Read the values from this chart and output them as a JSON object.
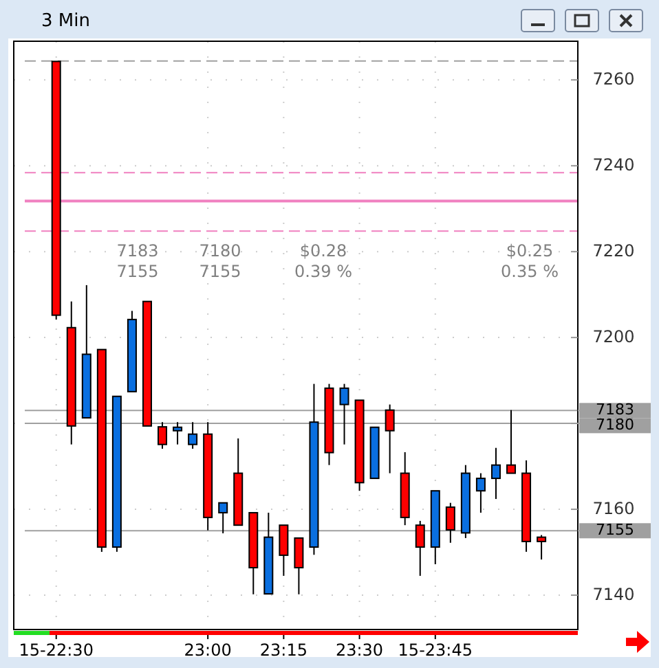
{
  "chart_data": {
    "type": "candlestick",
    "title": "3 Min",
    "x": [
      22.5,
      22.55,
      22.6,
      22.65,
      22.7,
      22.75,
      22.8,
      22.85,
      22.9,
      22.95,
      23.0,
      23.05,
      23.1,
      23.15,
      23.2,
      23.25,
      23.3,
      23.35,
      23.4,
      23.45,
      23.5,
      23.55,
      23.6,
      23.65,
      23.7,
      23.75,
      23.8,
      23.85,
      23.9,
      23.95,
      24.0,
      24.05,
      24.1
    ],
    "ohlc": [
      [
        7264.3,
        7264.3,
        7204.2,
        7205.2
      ],
      [
        7202.3,
        7208.4,
        7175.1,
        7179.4
      ],
      [
        7181.3,
        7212.2,
        7181.3,
        7196.1
      ],
      [
        7197.2,
        7197.2,
        7150.1,
        7151.2
      ],
      [
        7151.2,
        7186.3,
        7150.1,
        7186.3
      ],
      [
        7187.4,
        7206.2,
        7187.4,
        7204.2
      ],
      [
        7208.4,
        7208.4,
        7179.4,
        7179.4
      ],
      [
        7179.2,
        7180.3,
        7174.1,
        7175.1
      ],
      [
        7178.3,
        7180.3,
        7175.1,
        7179.1
      ],
      [
        7175.1,
        7180.3,
        7174.1,
        7177.5
      ],
      [
        7177.5,
        7180.3,
        7155.1,
        7158.1
      ],
      [
        7159.2,
        7161.5,
        7154.4,
        7161.5
      ],
      [
        7168.4,
        7176.5,
        7156.3,
        7156.3
      ],
      [
        7159.2,
        7159.2,
        7140.2,
        7146.4
      ],
      [
        7140.3,
        7159.2,
        7140.3,
        7153.5
      ],
      [
        7156.3,
        7156.3,
        7144.5,
        7149.3
      ],
      [
        7153.3,
        7153.3,
        7140.2,
        7146.4
      ],
      [
        7151.2,
        7189.2,
        7149.4,
        7180.3
      ],
      [
        7188.2,
        7189.2,
        7170.3,
        7173.2
      ],
      [
        7184.4,
        7189.2,
        7175.1,
        7188.2
      ],
      [
        7185.4,
        7185.4,
        7164.3,
        7166.2
      ],
      [
        7167.2,
        7179.1,
        7167.2,
        7179.1
      ],
      [
        7183.1,
        7184.4,
        7168.4,
        7178.3
      ],
      [
        7168.4,
        7173.3,
        7156.3,
        7158.1
      ],
      [
        7156.3,
        7157.3,
        7144.5,
        7151.2
      ],
      [
        7151.2,
        7164.3,
        7147.2,
        7164.3
      ],
      [
        7160.5,
        7161.5,
        7152.2,
        7155.2
      ],
      [
        7154.5,
        7170.3,
        7153.3,
        7168.4
      ],
      [
        7164.3,
        7168.4,
        7159.2,
        7167.2
      ],
      [
        7167.2,
        7174.3,
        7162.4,
        7170.3
      ],
      [
        7170.3,
        7183.1,
        7168.4,
        7168.4
      ],
      [
        7168.4,
        7171.4,
        7150.1,
        7152.5
      ],
      [
        7153.5,
        7154,
        7148.3,
        7152.5
      ]
    ],
    "colors": [
      "#ff0000",
      "#ff0000",
      "#0a6fe0",
      "#ff0000",
      "#0a6fe0",
      "#0a6fe0",
      "#ff0000",
      "#ff0000",
      "#0a6fe0",
      "#0a6fe0",
      "#ff0000",
      "#0a6fe0",
      "#ff0000",
      "#ff0000",
      "#0a6fe0",
      "#ff0000",
      "#ff0000",
      "#0a6fe0",
      "#ff0000",
      "#0a6fe0",
      "#ff0000",
      "#0a6fe0",
      "#ff0000",
      "#ff0000",
      "#ff0000",
      "#0a6fe0",
      "#ff0000",
      "#0a6fe0",
      "#0a6fe0",
      "#0a6fe0",
      "#ff0000",
      "#ff0000",
      "#ff0000"
    ],
    "xlim": [
      22.36,
      24.22
    ],
    "xticks": [
      {
        "value": 22.5,
        "label": "15-22:30"
      },
      {
        "value": 23,
        "label": "23:00"
      },
      {
        "value": 23.25,
        "label": "23:15"
      },
      {
        "value": 23.5,
        "label": "23:30"
      },
      {
        "value": 23.75,
        "label": "15-23:45"
      }
    ],
    "ylim": [
      7132,
      7269
    ],
    "yticks": [
      7140,
      7160,
      7180,
      7200,
      7220,
      7240,
      7260
    ],
    "grid": true,
    "ref_lines": [
      {
        "axis": "y",
        "value": 7264.4,
        "color": "#a0a0a0",
        "line_style": "dashed"
      },
      {
        "axis": "y",
        "value": 7238.4,
        "color": "#f080c0",
        "line_style": "dashed"
      },
      {
        "axis": "y",
        "value": 7231.8,
        "color": "#f080c0",
        "line_style": "solid"
      },
      {
        "axis": "y",
        "value": 7224.8,
        "color": "#f080c0",
        "line_style": "dashed"
      },
      {
        "axis": "y",
        "value": 7183,
        "label": "7183",
        "color": "#a0a0a0",
        "line_style": "solid"
      },
      {
        "axis": "y",
        "value": 7180,
        "label": "7180",
        "color": "#a0a0a0",
        "line_style": "solid"
      },
      {
        "axis": "y",
        "value": 7155,
        "label": "7155",
        "color": "#a0a0a0",
        "line_style": "solid"
      }
    ],
    "annotations": [
      "7183",
      "7155",
      "7180",
      "7155",
      "$0.28",
      "0.39 %",
      "$0.25",
      "0.35 %"
    ]
  }
}
